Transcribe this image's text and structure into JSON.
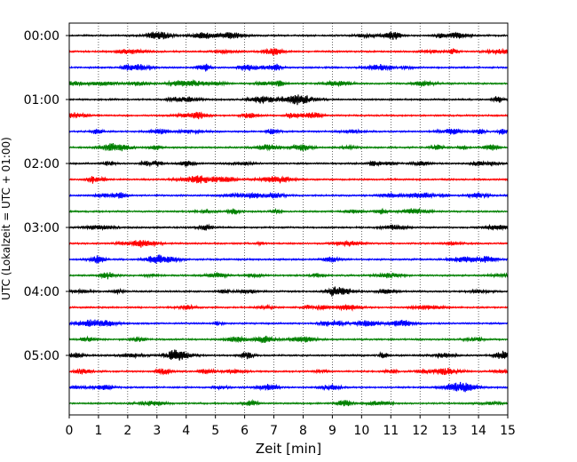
{
  "chart_data": {
    "type": "line",
    "title": "",
    "xlabel": "Zeit  [min]",
    "ylabel": "UTC (Lokalzeit = UTC + 01:00)",
    "xlim": [
      0,
      15
    ],
    "x_ticks": [
      0,
      1,
      2,
      3,
      4,
      5,
      6,
      7,
      8,
      9,
      10,
      11,
      12,
      13,
      14,
      15
    ],
    "x_tick_labels": [
      "0",
      "1",
      "2",
      "3",
      "4",
      "5",
      "6",
      "7",
      "8",
      "9",
      "10",
      "11",
      "12",
      "13",
      "14",
      "15"
    ],
    "y_tick_labels": [
      "00:00",
      "01:00",
      "02:00",
      "03:00",
      "04:00",
      "05:00"
    ],
    "vertical_grid": "dotted",
    "trace_interval_minutes": 15,
    "trace_count": 24,
    "trace_color_cycle": [
      "#000000",
      "#ff0000",
      "#0000ff",
      "#008000"
    ],
    "series": [
      {
        "start": "00:00",
        "color": "#000000"
      },
      {
        "start": "00:15",
        "color": "#ff0000"
      },
      {
        "start": "00:30",
        "color": "#0000ff"
      },
      {
        "start": "00:45",
        "color": "#008000"
      },
      {
        "start": "01:00",
        "color": "#000000"
      },
      {
        "start": "01:15",
        "color": "#ff0000"
      },
      {
        "start": "01:30",
        "color": "#0000ff"
      },
      {
        "start": "01:45",
        "color": "#008000"
      },
      {
        "start": "02:00",
        "color": "#000000"
      },
      {
        "start": "02:15",
        "color": "#ff0000"
      },
      {
        "start": "02:30",
        "color": "#0000ff"
      },
      {
        "start": "02:45",
        "color": "#008000"
      },
      {
        "start": "03:00",
        "color": "#000000"
      },
      {
        "start": "03:15",
        "color": "#ff0000"
      },
      {
        "start": "03:30",
        "color": "#0000ff"
      },
      {
        "start": "03:45",
        "color": "#008000"
      },
      {
        "start": "04:00",
        "color": "#000000"
      },
      {
        "start": "04:15",
        "color": "#ff0000"
      },
      {
        "start": "04:30",
        "color": "#0000ff"
      },
      {
        "start": "04:45",
        "color": "#008000"
      },
      {
        "start": "05:00",
        "color": "#000000"
      },
      {
        "start": "05:15",
        "color": "#ff0000"
      },
      {
        "start": "05:30",
        "color": "#0000ff"
      },
      {
        "start": "05:45",
        "color": "#008000"
      }
    ]
  }
}
